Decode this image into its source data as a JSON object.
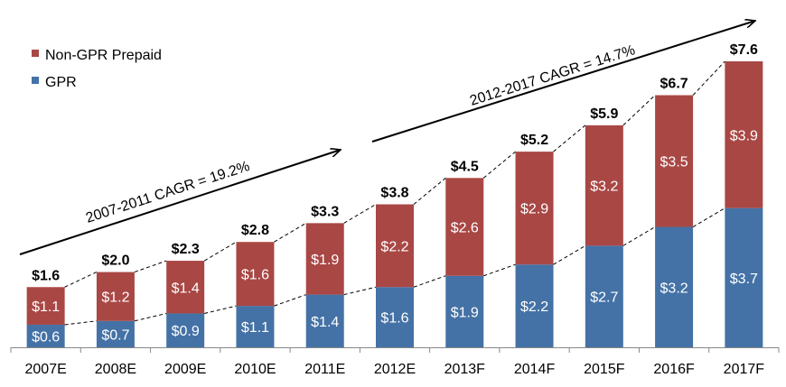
{
  "chart_data": {
    "type": "bar",
    "stacked": true,
    "title": "",
    "xlabel": "",
    "ylabel": "",
    "ylim": [
      0,
      7.6
    ],
    "grid": false,
    "legend_position": "top-left",
    "categories": [
      "2007E",
      "2008E",
      "2009E",
      "2010E",
      "2011E",
      "2012E",
      "2013F",
      "2014F",
      "2015F",
      "2016F",
      "2017F"
    ],
    "series": [
      {
        "name": "GPR",
        "color": "#4472a6",
        "values": [
          0.6,
          0.7,
          0.9,
          1.1,
          1.4,
          1.6,
          1.9,
          2.2,
          2.7,
          3.2,
          3.7
        ],
        "labels": [
          "$0.6",
          "$0.7",
          "$0.9",
          "$1.1",
          "$1.4",
          "$1.6",
          "$1.9",
          "$2.2",
          "$2.7",
          "$3.2",
          "$3.7"
        ]
      },
      {
        "name": "Non-GPR Prepaid",
        "color": "#a94745",
        "values": [
          1.1,
          1.2,
          1.4,
          1.6,
          1.9,
          2.2,
          2.6,
          2.9,
          3.2,
          3.5,
          3.9
        ],
        "labels": [
          "$1.1",
          "$1.2",
          "$1.4",
          "$1.6",
          "$1.9",
          "$2.2",
          "$2.6",
          "$2.9",
          "$3.2",
          "$3.5",
          "$3.9"
        ]
      }
    ],
    "totals": [
      1.6,
      2.0,
      2.3,
      2.8,
      3.3,
      3.8,
      4.5,
      5.2,
      5.9,
      6.7,
      7.6
    ],
    "total_labels": [
      "$1.6",
      "$2.0",
      "$2.3",
      "$2.8",
      "$3.3",
      "$3.8",
      "$4.5",
      "$5.2",
      "$5.9",
      "$6.7",
      "$7.6"
    ],
    "legend": [
      {
        "name": "Non-GPR Prepaid",
        "color": "#a94745"
      },
      {
        "name": "GPR",
        "color": "#4472a6"
      }
    ],
    "annotations": [
      {
        "text": "2007-2011 CAGR = 19.2%",
        "from": "2007E",
        "to": "2011E"
      },
      {
        "text": "2012-2017 CAGR = 14.7%",
        "from": "2012E",
        "to": "2017F"
      }
    ]
  }
}
